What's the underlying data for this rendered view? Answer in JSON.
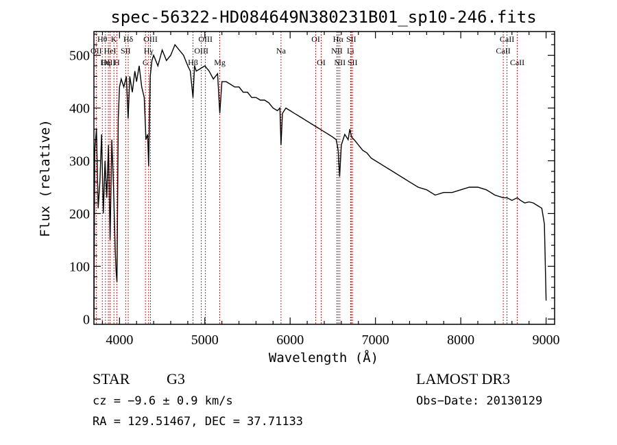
{
  "chart_data": {
    "type": "line",
    "title": "spec-56322-HD084649N380231B01_sp10-246.fits",
    "xlabel": "Wavelength (Å)",
    "ylabel": "Flux (relative)",
    "xlim": [
      3700,
      9100
    ],
    "ylim": [
      -10,
      545
    ],
    "xticks": [
      4000,
      5000,
      6000,
      7000,
      8000,
      9000
    ],
    "yticks": [
      0,
      100,
      200,
      300,
      400,
      500
    ],
    "series": [
      {
        "name": "flux",
        "x": [
          3700,
          3710,
          3730,
          3750,
          3770,
          3790,
          3810,
          3830,
          3850,
          3870,
          3890,
          3910,
          3930,
          3950,
          3960,
          3970,
          3985,
          4000,
          4020,
          4050,
          4080,
          4101,
          4120,
          4150,
          4180,
          4200,
          4230,
          4260,
          4290,
          4310,
          4330,
          4341,
          4360,
          4380,
          4400,
          4450,
          4500,
          4550,
          4600,
          4650,
          4700,
          4750,
          4800,
          4830,
          4861,
          4880,
          4900,
          4950,
          5000,
          5050,
          5100,
          5150,
          5175,
          5200,
          5250,
          5300,
          5350,
          5400,
          5450,
          5500,
          5550,
          5600,
          5650,
          5700,
          5750,
          5800,
          5850,
          5880,
          5893,
          5910,
          5950,
          6000,
          6050,
          6100,
          6150,
          6200,
          6250,
          6300,
          6350,
          6400,
          6450,
          6500,
          6540,
          6563,
          6580,
          6600,
          6640,
          6680,
          6700,
          6720,
          6750,
          6800,
          6850,
          6900,
          6950,
          7000,
          7050,
          7100,
          7150,
          7200,
          7300,
          7400,
          7500,
          7600,
          7650,
          7700,
          7800,
          7900,
          8000,
          8100,
          8200,
          8300,
          8400,
          8498,
          8542,
          8600,
          8662,
          8700,
          8750,
          8800,
          8850,
          8900,
          8950,
          8980,
          9000
        ],
        "y": [
          0,
          320,
          360,
          210,
          260,
          350,
          200,
          300,
          230,
          330,
          150,
          340,
          250,
          130,
          90,
          70,
          380,
          440,
          455,
          440,
          460,
          380,
          460,
          430,
          470,
          450,
          480,
          440,
          420,
          340,
          350,
          290,
          460,
          490,
          500,
          480,
          510,
          490,
          500,
          520,
          510,
          500,
          480,
          470,
          420,
          480,
          470,
          475,
          480,
          470,
          455,
          465,
          390,
          450,
          450,
          445,
          440,
          440,
          430,
          430,
          420,
          420,
          415,
          415,
          410,
          400,
          395,
          400,
          330,
          390,
          400,
          395,
          390,
          385,
          380,
          375,
          370,
          365,
          360,
          355,
          350,
          345,
          340,
          320,
          270,
          330,
          350,
          340,
          360,
          345,
          340,
          330,
          320,
          315,
          305,
          300,
          295,
          290,
          285,
          280,
          270,
          260,
          250,
          245,
          240,
          235,
          240,
          240,
          245,
          250,
          250,
          245,
          235,
          230,
          230,
          225,
          230,
          225,
          220,
          222,
          220,
          215,
          210,
          180,
          35
        ]
      }
    ],
    "line_markers": [
      {
        "label": "Hθ",
        "wavelength": 3798,
        "row": 0
      },
      {
        "label": "OII",
        "wavelength": 3727,
        "row": 1
      },
      {
        "label": "OIII",
        "wavelength": 3869,
        "row": 2
      },
      {
        "label": "K",
        "wavelength": 3934,
        "row": 0
      },
      {
        "label": "HeI",
        "wavelength": 3889,
        "row": 1
      },
      {
        "label": "Hη",
        "wavelength": 3835,
        "row": 2
      },
      {
        "label": "Hδ",
        "wavelength": 4102,
        "row": 0
      },
      {
        "label": "SII",
        "wavelength": 4072,
        "row": 1
      },
      {
        "label": "H",
        "wavelength": 3969,
        "row": 2
      },
      {
        "label": "OIII",
        "wavelength": 4363,
        "row": 0
      },
      {
        "label": "Hγ",
        "wavelength": 4341,
        "row": 1
      },
      {
        "label": "G",
        "wavelength": 4304,
        "row": 2
      },
      {
        "label": "OIII",
        "wavelength": 5007,
        "row": 0
      },
      {
        "label": "OIII",
        "wavelength": 4959,
        "row": 1
      },
      {
        "label": "Hβ",
        "wavelength": 4861,
        "row": 2
      },
      {
        "label": "Mg",
        "wavelength": 5175,
        "row": 2
      },
      {
        "label": "Na",
        "wavelength": 5893,
        "row": 1
      },
      {
        "label": "OI",
        "wavelength": 6300,
        "row": 0
      },
      {
        "label": "OI",
        "wavelength": 6364,
        "row": 2
      },
      {
        "label": "Hα",
        "wavelength": 6563,
        "row": 0
      },
      {
        "label": "SII",
        "wavelength": 6716,
        "row": 0
      },
      {
        "label": "NII",
        "wavelength": 6548,
        "row": 1
      },
      {
        "label": "Li",
        "wavelength": 6708,
        "row": 1
      },
      {
        "label": "NII",
        "wavelength": 6583,
        "row": 2
      },
      {
        "label": "SII",
        "wavelength": 6731,
        "row": 2
      },
      {
        "label": "CaII",
        "wavelength": 8542,
        "row": 0
      },
      {
        "label": "CaII",
        "wavelength": 8498,
        "row": 1
      },
      {
        "label": "CaII",
        "wavelength": 8662,
        "row": 2
      }
    ]
  },
  "info": {
    "object_type": "STAR",
    "subclass": "G3",
    "survey": "LAMOST DR3",
    "cz": "cz = −9.6 ± 0.9 km/s",
    "obs_date": "Obs−Date: 20130129",
    "coords": "RA = 129.51467, DEC =  37.71133"
  },
  "colors": {
    "spectrum": "#000000",
    "marker_line": "#cc0000",
    "axes": "#000000"
  }
}
